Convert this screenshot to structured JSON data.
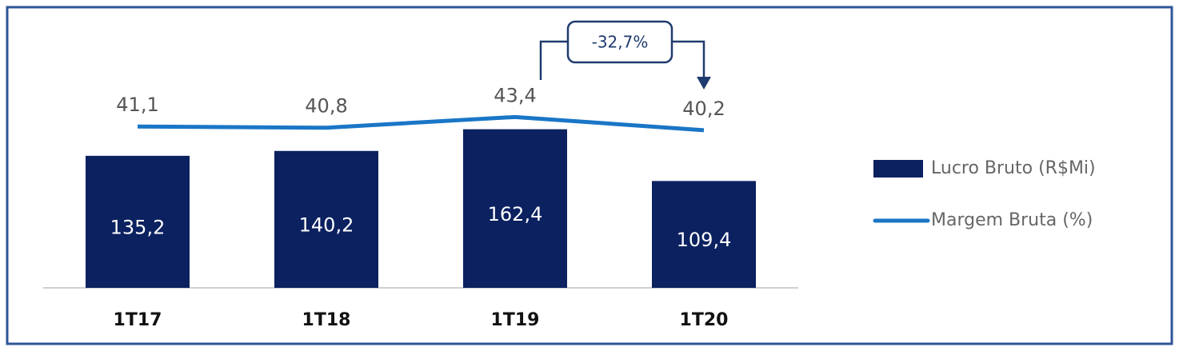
{
  "chart_data": {
    "type": "bar-line",
    "categories": [
      "1T17",
      "1T18",
      "1T19",
      "1T20"
    ],
    "series": [
      {
        "name": "Lucro Bruto (R$Mi)",
        "type": "bar",
        "color": "#0b2160",
        "axis": "y",
        "values": [
          135.2,
          140.2,
          162.4,
          109.4
        ],
        "value_labels": [
          "135,2",
          "140,2",
          "162,4",
          "109,4"
        ]
      },
      {
        "name": "Margem Bruta (%)",
        "type": "line",
        "color": "#1a76c6",
        "axis": "y2",
        "values": [
          41.1,
          40.8,
          43.4,
          40.2
        ],
        "value_labels": [
          "41,1",
          "40,8",
          "43,4",
          "40,2"
        ]
      }
    ],
    "ylim": [
      0,
      262
    ],
    "y2lim": [
      2,
      64
    ],
    "annotation": "-32,7%",
    "legend": "right"
  }
}
